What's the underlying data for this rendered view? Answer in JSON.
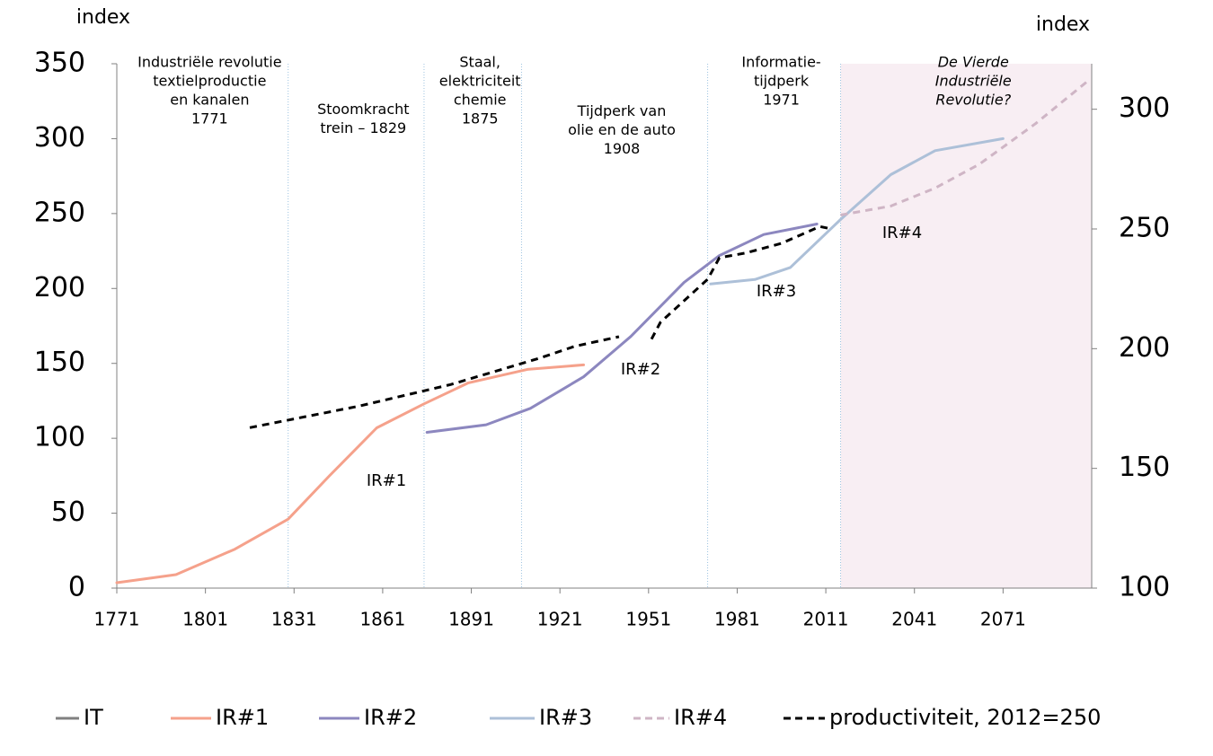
{
  "chart_data": {
    "type": "line",
    "left_axis_label": "index",
    "right_axis_label": "index",
    "xlim": [
      1771,
      2101
    ],
    "xticks": [
      1771,
      1801,
      1831,
      1861,
      1891,
      1921,
      1951,
      1981,
      2011,
      2041,
      2071
    ],
    "ylim": [
      0,
      350
    ],
    "yticks": [
      0,
      50,
      100,
      150,
      200,
      250,
      300,
      350
    ],
    "y2lim": [
      100,
      319
    ],
    "y2ticks": [
      100,
      150,
      200,
      250,
      300
    ],
    "dividers": [
      1829,
      1875,
      1908,
      1971,
      2016
    ],
    "shade_from": 2016,
    "annotations": [
      {
        "lines": [
          "Industriële revolutie",
          "textielproductie",
          "en kanalen",
          "1771"
        ]
      },
      {
        "lines": [
          "Stoomkracht",
          "trein – 1829"
        ]
      },
      {
        "lines": [
          "Staal,",
          "elektriciteit",
          "chemie",
          "1875"
        ]
      },
      {
        "lines": [
          "Tijdperk van",
          "olie en de auto",
          "1908"
        ]
      },
      {
        "lines": [
          "Informatie-",
          "tijdperk",
          "1971"
        ]
      },
      {
        "lines": [
          "De Vierde",
          "Industriële",
          "Revolutie?"
        ],
        "italic": true
      }
    ],
    "series": [
      {
        "name": "IT",
        "color": "#808080",
        "x": [],
        "values": []
      },
      {
        "name": "IR#1",
        "color": "#f5a18b",
        "x": [
          1771,
          1791,
          1811,
          1829,
          1843,
          1859,
          1875,
          1890,
          1910,
          1929
        ],
        "values": [
          3.6,
          9,
          26,
          46,
          75,
          107,
          123,
          137,
          146,
          149
        ]
      },
      {
        "name": "IR#2",
        "color": "#8c87bf",
        "x": [
          1876,
          1896,
          1911,
          1929,
          1945,
          1963,
          1975,
          1990,
          2008
        ],
        "values": [
          104,
          109,
          120,
          141,
          168,
          204,
          222,
          236,
          243
        ]
      },
      {
        "name": "IR#3",
        "color": "#adc0d8",
        "x": [
          1972,
          1987,
          1999,
          2016,
          2033,
          2048,
          2071
        ],
        "values": [
          203,
          206,
          214,
          246,
          276,
          292,
          300
        ]
      },
      {
        "name": "IR#4",
        "color": "#cfb5c5",
        "dash": true,
        "x": [
          2016,
          2033,
          2048,
          2063,
          2082,
          2100
        ],
        "values": [
          249,
          255,
          267,
          283,
          310,
          339
        ]
      },
      {
        "name": "productiviteit, 2012=250",
        "color": "#000000",
        "dash": true,
        "axis": "y2",
        "x": [
          1816,
          1853,
          1884,
          1914,
          1926,
          1941,
          1946,
          1952,
          1955,
          1963,
          1971,
          1975,
          1984,
          1996,
          2009,
          2013
        ],
        "values": [
          167,
          176,
          185,
          196,
          201,
          205,
          null,
          204,
          211,
          220,
          229,
          238,
          240,
          244,
          251,
          250
        ]
      }
    ]
  }
}
